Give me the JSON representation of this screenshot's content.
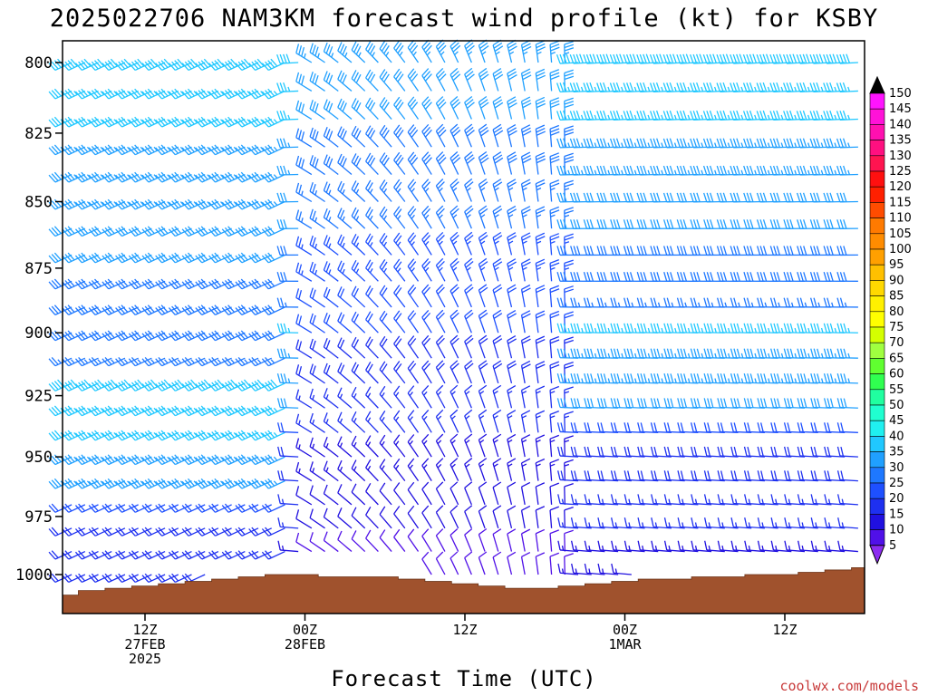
{
  "page": {
    "title": "2025022706 NAM3KM forecast wind profile (kt) for KSBY",
    "credit": "coolwx.com/models"
  },
  "chart_data": {
    "type": "wind-barb time-height",
    "title": "2025022706 NAM3KM forecast wind profile (kt) for KSBY",
    "xlabel": "Forecast Time (UTC)",
    "ylabel": "",
    "y_scale": "log-pressure",
    "y_range_hPa": [
      1020,
      792
    ],
    "y_ticks": [
      800,
      825,
      850,
      875,
      900,
      925,
      950,
      975,
      1000
    ],
    "x_range_hours": [
      6,
      66
    ],
    "x_ticks": [
      {
        "hour": 12,
        "lines": [
          "12Z",
          "27FEB",
          "2025"
        ]
      },
      {
        "hour": 24,
        "lines": [
          "00Z",
          "28FEB"
        ]
      },
      {
        "hour": 36,
        "lines": [
          "12Z"
        ]
      },
      {
        "hour": 48,
        "lines": [
          "00Z",
          "1MAR"
        ]
      },
      {
        "hour": 60,
        "lines": [
          "12Z"
        ]
      }
    ],
    "barb_levels_hPa": [
      1000,
      990,
      980,
      970,
      960,
      950,
      940,
      930,
      920,
      910,
      900,
      890,
      880,
      870,
      860,
      850,
      840,
      830,
      820,
      810,
      800
    ],
    "barb_hours_step": 2,
    "surface_pressure_by_hour": [
      [
        6,
        1009
      ],
      [
        8,
        1007
      ],
      [
        10,
        1006
      ],
      [
        12,
        1005
      ],
      [
        14,
        1004
      ],
      [
        16,
        1003
      ],
      [
        18,
        1002
      ],
      [
        20,
        1001
      ],
      [
        22,
        1000
      ],
      [
        24,
        1000
      ],
      [
        26,
        1001
      ],
      [
        28,
        1001
      ],
      [
        30,
        1001
      ],
      [
        32,
        1002
      ],
      [
        34,
        1003
      ],
      [
        36,
        1004
      ],
      [
        38,
        1005
      ],
      [
        40,
        1006
      ],
      [
        42,
        1006
      ],
      [
        44,
        1005
      ],
      [
        46,
        1004
      ],
      [
        48,
        1003
      ],
      [
        50,
        1002
      ],
      [
        52,
        1002
      ],
      [
        54,
        1001
      ],
      [
        56,
        1001
      ],
      [
        58,
        1000
      ],
      [
        60,
        1000
      ],
      [
        62,
        999
      ],
      [
        64,
        998
      ],
      [
        66,
        997
      ]
    ],
    "terrain_color": "#a0522d",
    "colorbar": {
      "labels": [
        "150",
        "145",
        "140",
        "135",
        "130",
        "125",
        "120",
        "115",
        "110",
        "105",
        "100",
        "95",
        "90",
        "85",
        "80",
        "75",
        "70",
        "65",
        "60",
        "55",
        "50",
        "45",
        "40",
        "35",
        "30",
        "25",
        "20",
        "15",
        "10",
        "5"
      ],
      "colors": [
        "#ff14ff",
        "#ff12d8",
        "#ff10b0",
        "#ff1080",
        "#ff1450",
        "#ff1010",
        "#ff2000",
        "#ff4c00",
        "#ff7a00",
        "#ff8c00",
        "#ffa000",
        "#ffc000",
        "#ffd800",
        "#fff000",
        "#ffff00",
        "#d4ff00",
        "#a0ff40",
        "#60ff30",
        "#30ff50",
        "#20ffa0",
        "#20ffd0",
        "#20f0f0",
        "#20c8ff",
        "#20a0ff",
        "#1e78ff",
        "#1e50ff",
        "#1e30f0",
        "#2010e0",
        "#5010e8",
        "#8020f0"
      ],
      "top_arrow_color": "#000000",
      "bottom_arrow_color": "#8c2cf0"
    },
    "wind_regimes": [
      {
        "hours": [
          6,
          23
        ],
        "description": "westerly / west-southwest",
        "direction_deg": 245,
        "speed_kt_lowlevel": 20,
        "speed_kt_midlevel": 40
      },
      {
        "hours": [
          24,
          44
        ],
        "description": "northwesterly veering to northerly",
        "direction_deg": 330,
        "speed_kt_lowlevel": 10,
        "speed_kt_midlevel": 35
      },
      {
        "hours": [
          45,
          66
        ],
        "description": "west-northwest",
        "direction_deg": 280,
        "speed_kt_lowlevel": 15,
        "speed_kt_midlevel": 40
      }
    ]
  }
}
